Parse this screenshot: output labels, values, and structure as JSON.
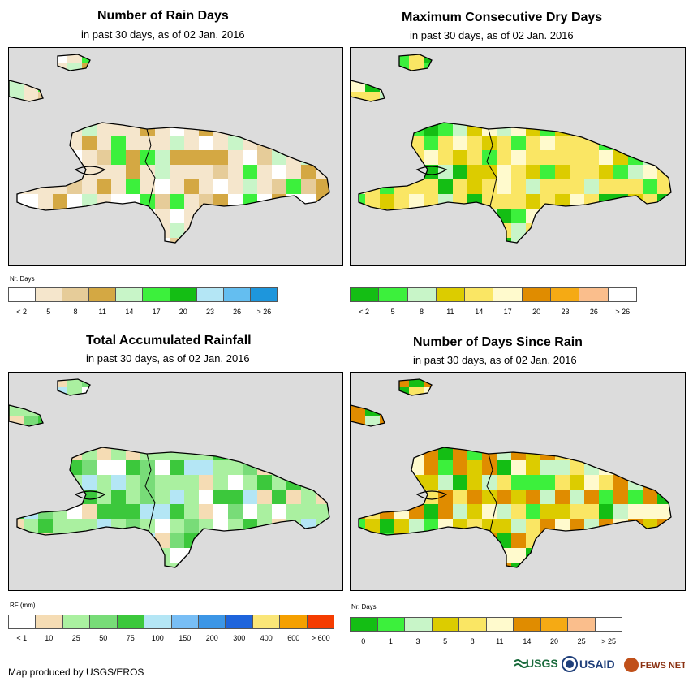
{
  "footer": {
    "credit": "Map produced by USGS/EROS"
  },
  "logos": {
    "usgs": "USGS",
    "usaid": "USAID",
    "fews": "FEWS NET"
  },
  "panels": [
    {
      "title": "Number of Rain Days",
      "subtitle": "in past 30 days, as of 02 Jan. 2016",
      "legend_title": "Nr. Days",
      "legend_colors": [
        "#ffffff",
        "#f5e6cc",
        "#e6cc99",
        "#d4a843",
        "#c8f5c8",
        "#3cf03c",
        "#14be14",
        "#b4e6f5",
        "#64bef0",
        "#1e96dc"
      ],
      "legend_labels": [
        "< 2",
        "5",
        "8",
        "11",
        "14",
        "17",
        "20",
        "23",
        "26",
        "> 26"
      ],
      "fill": "#f5e6cc"
    },
    {
      "title": "Maximum Consecutive Dry Days",
      "subtitle": "in past 30 days, as of 02 Jan. 2016",
      "legend_title": "",
      "legend_colors": [
        "#14be14",
        "#3cf03c",
        "#c8f5c8",
        "#dccc00",
        "#fae664",
        "#fffacd",
        "#e08c00",
        "#f5aa14",
        "#fabe8c",
        "#ffffff"
      ],
      "legend_labels": [
        "< 2",
        "5",
        "8",
        "11",
        "14",
        "17",
        "20",
        "23",
        "26",
        "> 26"
      ],
      "fill": "#fae664"
    },
    {
      "title": "Total Accumulated Rainfall",
      "subtitle": "in past 30 days, as of 02 Jan. 2016",
      "legend_title": "RF (mm)",
      "legend_colors": [
        "#ffffff",
        "#f5dcb4",
        "#aaf0a0",
        "#78dc78",
        "#3cc83c",
        "#b4e6f5",
        "#78bef5",
        "#3c96e6",
        "#1e64dc",
        "#fae678",
        "#f5a000",
        "#f53c00"
      ],
      "legend_labels": [
        "< 1",
        "10",
        "25",
        "50",
        "75",
        "100",
        "150",
        "200",
        "300",
        "400",
        "600",
        "> 600"
      ],
      "fill": "#aaf0a0"
    },
    {
      "title": "Number of Days Since Rain",
      "subtitle": "in past 30 days, as of 02 Jan. 2016",
      "legend_title": "Nr. Days",
      "legend_colors": [
        "#14be14",
        "#3cf03c",
        "#c8f5c8",
        "#dccc00",
        "#fae664",
        "#fffacd",
        "#e08c00",
        "#f5aa14",
        "#fabe8c",
        "#ffffff"
      ],
      "legend_labels": [
        "0",
        "1",
        "3",
        "5",
        "8",
        "11",
        "14",
        "20",
        "25",
        "> 25"
      ],
      "fill": "#e08c00"
    }
  ]
}
